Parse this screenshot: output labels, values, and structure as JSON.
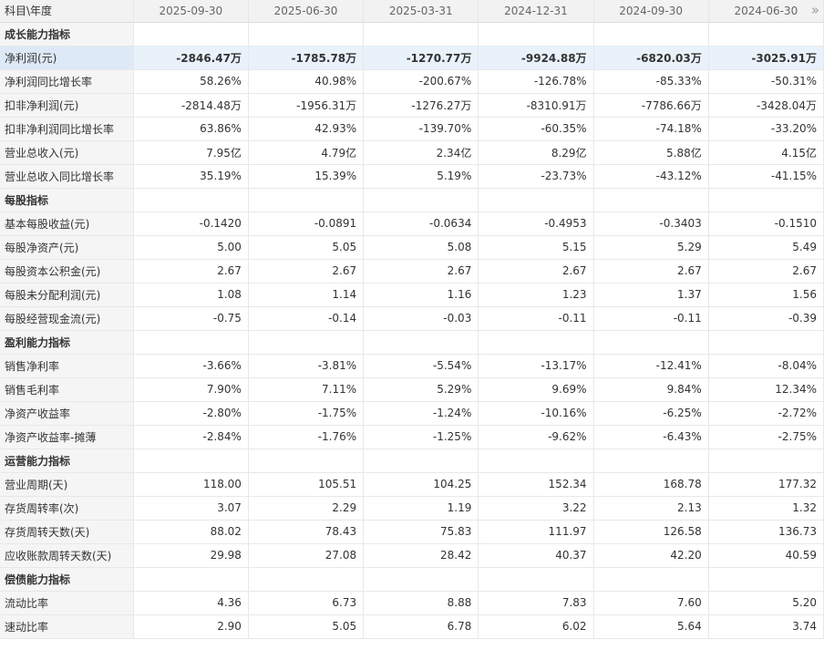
{
  "header": {
    "label": "科目\\年度",
    "periods": [
      "2025-09-30",
      "2025-06-30",
      "2025-03-31",
      "2024-12-31",
      "2024-09-30",
      "2024-06-30"
    ],
    "more_icon": "double-chevron-right-icon",
    "more_glyph": "»"
  },
  "rows": [
    {
      "type": "section",
      "label": "成长能力指标"
    },
    {
      "type": "highlight",
      "label": "净利润(元)",
      "values": [
        "-2846.47万",
        "-1785.78万",
        "-1270.77万",
        "-9924.88万",
        "-6820.03万",
        "-3025.91万"
      ]
    },
    {
      "type": "data",
      "label": "净利润同比增长率",
      "values": [
        "58.26%",
        "40.98%",
        "-200.67%",
        "-126.78%",
        "-85.33%",
        "-50.31%"
      ]
    },
    {
      "type": "data",
      "label": "扣非净利润(元)",
      "values": [
        "-2814.48万",
        "-1956.31万",
        "-1276.27万",
        "-8310.91万",
        "-7786.66万",
        "-3428.04万"
      ]
    },
    {
      "type": "data",
      "label": "扣非净利润同比增长率",
      "values": [
        "63.86%",
        "42.93%",
        "-139.70%",
        "-60.35%",
        "-74.18%",
        "-33.20%"
      ]
    },
    {
      "type": "data",
      "label": "营业总收入(元)",
      "values": [
        "7.95亿",
        "4.79亿",
        "2.34亿",
        "8.29亿",
        "5.88亿",
        "4.15亿"
      ]
    },
    {
      "type": "data",
      "label": "营业总收入同比增长率",
      "values": [
        "35.19%",
        "15.39%",
        "5.19%",
        "-23.73%",
        "-43.12%",
        "-41.15%"
      ]
    },
    {
      "type": "section",
      "label": "每股指标"
    },
    {
      "type": "data",
      "label": "基本每股收益(元)",
      "values": [
        "-0.1420",
        "-0.0891",
        "-0.0634",
        "-0.4953",
        "-0.3403",
        "-0.1510"
      ]
    },
    {
      "type": "data",
      "label": "每股净资产(元)",
      "values": [
        "5.00",
        "5.05",
        "5.08",
        "5.15",
        "5.29",
        "5.49"
      ]
    },
    {
      "type": "data",
      "label": "每股资本公积金(元)",
      "values": [
        "2.67",
        "2.67",
        "2.67",
        "2.67",
        "2.67",
        "2.67"
      ]
    },
    {
      "type": "data",
      "label": "每股未分配利润(元)",
      "values": [
        "1.08",
        "1.14",
        "1.16",
        "1.23",
        "1.37",
        "1.56"
      ]
    },
    {
      "type": "data",
      "label": "每股经营现金流(元)",
      "values": [
        "-0.75",
        "-0.14",
        "-0.03",
        "-0.11",
        "-0.11",
        "-0.39"
      ]
    },
    {
      "type": "section",
      "label": "盈利能力指标"
    },
    {
      "type": "data",
      "label": "销售净利率",
      "values": [
        "-3.66%",
        "-3.81%",
        "-5.54%",
        "-13.17%",
        "-12.41%",
        "-8.04%"
      ]
    },
    {
      "type": "data",
      "label": "销售毛利率",
      "values": [
        "7.90%",
        "7.11%",
        "5.29%",
        "9.69%",
        "9.84%",
        "12.34%"
      ]
    },
    {
      "type": "data",
      "label": "净资产收益率",
      "values": [
        "-2.80%",
        "-1.75%",
        "-1.24%",
        "-10.16%",
        "-6.25%",
        "-2.72%"
      ]
    },
    {
      "type": "data",
      "label": "净资产收益率-摊薄",
      "values": [
        "-2.84%",
        "-1.76%",
        "-1.25%",
        "-9.62%",
        "-6.43%",
        "-2.75%"
      ]
    },
    {
      "type": "section",
      "label": "运营能力指标"
    },
    {
      "type": "data",
      "label": "营业周期(天)",
      "values": [
        "118.00",
        "105.51",
        "104.25",
        "152.34",
        "168.78",
        "177.32"
      ]
    },
    {
      "type": "data",
      "label": "存货周转率(次)",
      "values": [
        "3.07",
        "2.29",
        "1.19",
        "3.22",
        "2.13",
        "1.32"
      ]
    },
    {
      "type": "data",
      "label": "存货周转天数(天)",
      "values": [
        "88.02",
        "78.43",
        "75.83",
        "111.97",
        "126.58",
        "136.73"
      ]
    },
    {
      "type": "data",
      "label": "应收账款周转天数(天)",
      "values": [
        "29.98",
        "27.08",
        "28.42",
        "40.37",
        "42.20",
        "40.59"
      ]
    },
    {
      "type": "section",
      "label": "偿债能力指标"
    },
    {
      "type": "data",
      "label": "流动比率",
      "values": [
        "4.36",
        "6.73",
        "8.88",
        "7.83",
        "7.60",
        "5.20"
      ]
    },
    {
      "type": "data",
      "label": "速动比率",
      "values": [
        "2.90",
        "5.05",
        "6.78",
        "6.02",
        "5.64",
        "3.74"
      ]
    }
  ]
}
